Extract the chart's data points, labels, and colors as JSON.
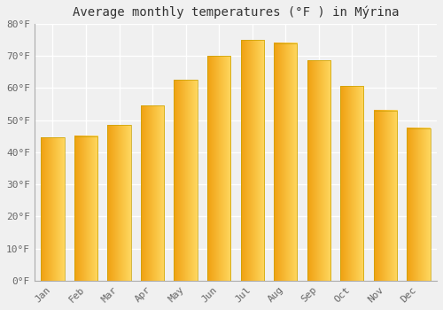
{
  "title": "Average monthly temperatures (°F ) in Mýrina",
  "months": [
    "Jan",
    "Feb",
    "Mar",
    "Apr",
    "May",
    "Jun",
    "Jul",
    "Aug",
    "Sep",
    "Oct",
    "Nov",
    "Dec"
  ],
  "values": [
    44.5,
    45.0,
    48.5,
    54.5,
    62.5,
    70.0,
    75.0,
    74.0,
    68.5,
    60.5,
    53.0,
    47.5
  ],
  "bar_color_left": "#F0A010",
  "bar_color_right": "#FFD860",
  "ylim": [
    0,
    80
  ],
  "yticks": [
    0,
    10,
    20,
    30,
    40,
    50,
    60,
    70,
    80
  ],
  "ytick_labels": [
    "0°F",
    "10°F",
    "20°F",
    "30°F",
    "40°F",
    "50°F",
    "60°F",
    "70°F",
    "80°F"
  ],
  "background_color": "#f0f0f0",
  "grid_color": "#ffffff",
  "bar_edge_color": "#c8a000",
  "title_fontsize": 10,
  "tick_fontsize": 8,
  "bar_width": 0.7
}
